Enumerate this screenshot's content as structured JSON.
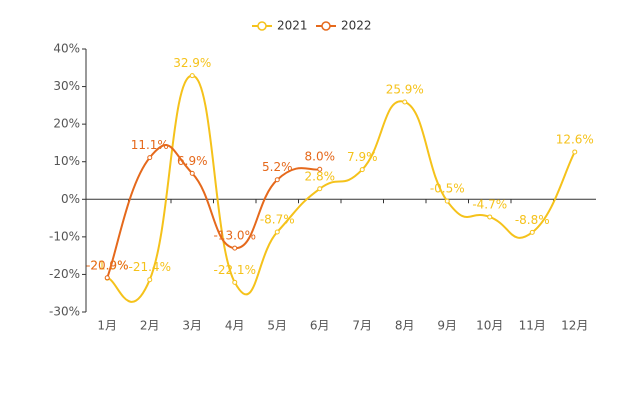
{
  "chart_data": {
    "type": "line",
    "categories": [
      "1月",
      "2月",
      "3月",
      "4月",
      "5月",
      "6月",
      "7月",
      "8月",
      "9月",
      "10月",
      "11月",
      "12月"
    ],
    "series": [
      {
        "name": "2021",
        "color": "#f5c21b",
        "values": [
          -21.0,
          -21.4,
          32.9,
          -22.1,
          -8.7,
          2.8,
          7.9,
          25.9,
          -0.5,
          -4.7,
          -8.8,
          12.6
        ],
        "value_labels": [
          "-21.0%",
          "-21.4%",
          "32.9%",
          "-22.1%",
          "-8.7%",
          "2.8%",
          "7.9%",
          "25.9%",
          "-0.5%",
          "-4.7%",
          "-8.8%",
          "12.6%"
        ]
      },
      {
        "name": "2022",
        "color": "#e5691c",
        "values": [
          -20.9,
          11.1,
          6.9,
          -13.0,
          5.2,
          8.0,
          null,
          null,
          null,
          null,
          null,
          null
        ],
        "value_labels": [
          "-20.9%",
          "11.1%",
          "6.9%",
          "-13.0%",
          "5.2%",
          "8.0%",
          null,
          null,
          null,
          null,
          null,
          null
        ]
      }
    ],
    "ylim": [
      -30,
      40
    ],
    "yticks": [
      {
        "value": -30,
        "label": "-30%"
      },
      {
        "value": -20,
        "label": "-20%"
      },
      {
        "value": -10,
        "label": "-10%"
      },
      {
        "value": 0,
        "label": "0%"
      },
      {
        "value": 10,
        "label": "10%"
      },
      {
        "value": 20,
        "label": "20%"
      },
      {
        "value": 30,
        "label": "30%"
      },
      {
        "value": 40,
        "label": "40%"
      }
    ],
    "legend": "top"
  }
}
